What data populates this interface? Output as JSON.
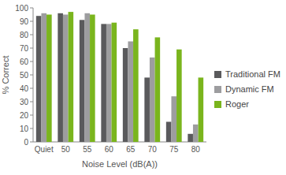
{
  "chart_data": {
    "type": "bar",
    "x_label": "Noise Level (dB(A))",
    "y_label": "% Correct",
    "categories": [
      "Quiet",
      "50",
      "55",
      "60",
      "65",
      "70",
      "75",
      "80"
    ],
    "series": [
      {
        "name": "Traditional FM",
        "color": "#5a5a5c",
        "values": [
          94,
          96,
          91,
          88,
          70,
          48,
          15,
          6
        ]
      },
      {
        "name": "Dynamic FM",
        "color": "#9d9d9f",
        "values": [
          96,
          95,
          96,
          88,
          75,
          63,
          34,
          13
        ]
      },
      {
        "name": "Roger",
        "color": "#7ab51d",
        "values": [
          95,
          97,
          95,
          89,
          84,
          78,
          69,
          48
        ]
      }
    ],
    "ylim": [
      0,
      100
    ],
    "yticks": [
      0,
      10,
      20,
      30,
      40,
      50,
      60,
      70,
      80,
      90,
      100
    ],
    "grid": false,
    "legend": "right"
  }
}
